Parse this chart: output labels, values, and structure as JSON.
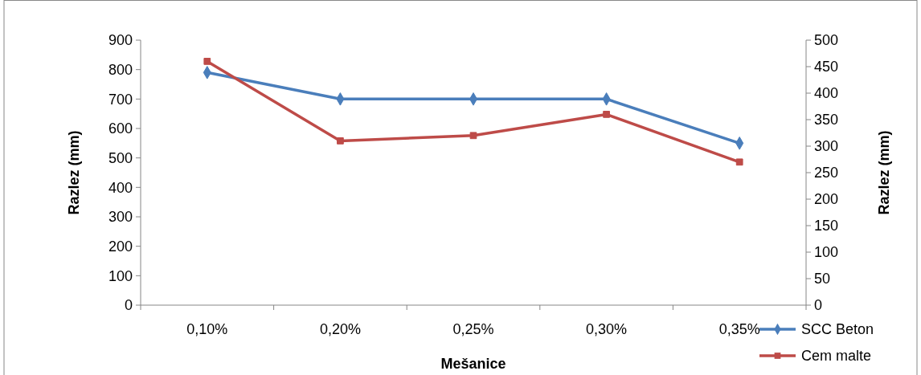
{
  "chart_data": {
    "type": "line",
    "xlabel": "Mešanice",
    "ylabel": "Razlez (mm)",
    "y2label": "Razlez (mm)",
    "categories": [
      "0,10%",
      "0,20%",
      "0,25%",
      "0,30%",
      "0,35%"
    ],
    "series": [
      {
        "name": "SCC Beton",
        "color": "#4a7ebb",
        "values": [
          790,
          700,
          700,
          700,
          550
        ],
        "marker": "diamond"
      },
      {
        "name": "Cem malte",
        "color": "#be4b48",
        "values": [
          460,
          310,
          320,
          360,
          270
        ],
        "axis": "y2",
        "marker": "square"
      }
    ],
    "ylim": [
      0,
      900
    ],
    "yticks": [
      0,
      100,
      200,
      300,
      400,
      500,
      600,
      700,
      800,
      900
    ],
    "y2lim": [
      0,
      500
    ],
    "y2ticks": [
      0,
      50,
      100,
      150,
      200,
      250,
      300,
      350,
      400,
      450,
      500
    ],
    "grid": false,
    "legend": "bottom right"
  }
}
